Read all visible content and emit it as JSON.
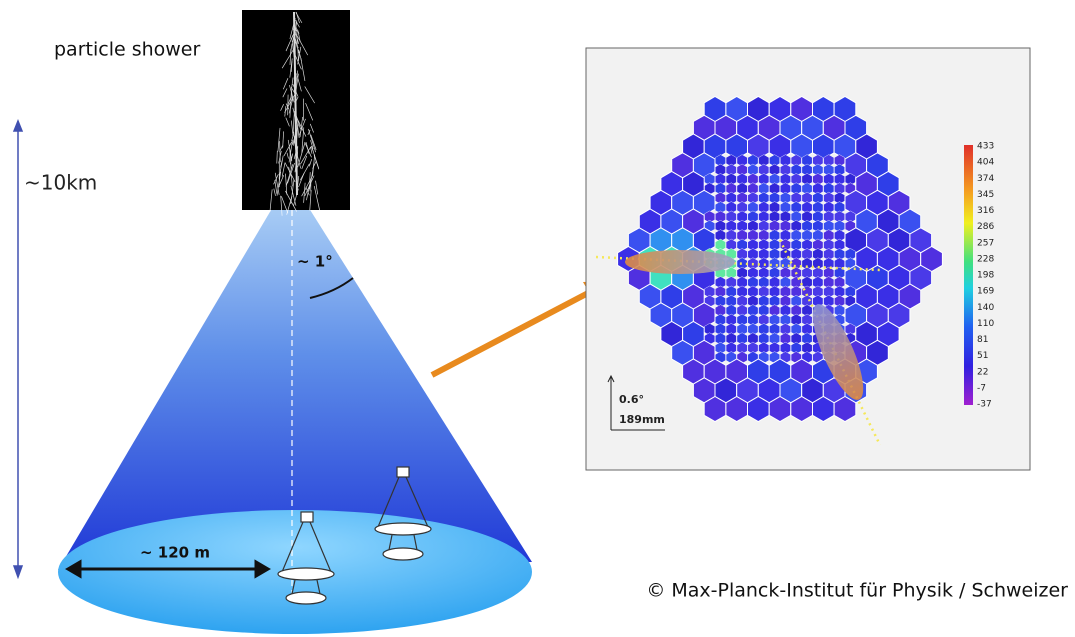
{
  "shower_label": "particle shower",
  "height_label": "~10km",
  "angle_label": "~ 1°",
  "width_label": "~ 120 m",
  "camera": {
    "colorbar_labels": [
      433,
      404,
      374,
      345,
      316,
      286,
      257,
      228,
      198,
      169,
      140,
      110,
      81,
      51,
      22,
      -7,
      -37
    ],
    "scale_angle": "0.6°",
    "scale_length": "189mm"
  },
  "credit": "© Max-Planck-Institut für Physik / Schweizer"
}
